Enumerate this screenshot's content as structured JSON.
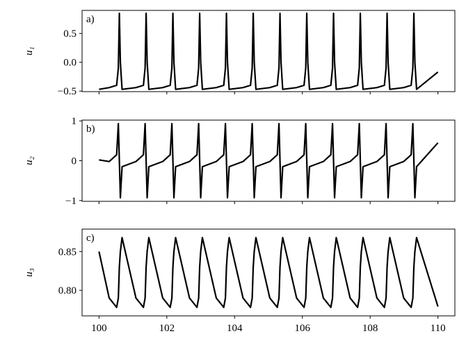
{
  "chart_data": [
    {
      "type": "line",
      "panel_label": "a)",
      "ylabel": "u₁",
      "xlim": [
        99.5,
        110.5
      ],
      "ylim": [
        -0.51,
        0.9
      ],
      "xticks": [
        100,
        102,
        104,
        106,
        108,
        110
      ],
      "xtick_labels": false,
      "yticks": [
        {
          "value": -0.5,
          "label": "−0.5"
        },
        {
          "value": 0,
          "label": "0.0"
        },
        {
          "value": 0.5,
          "label": "0.5"
        }
      ],
      "x": [
        100,
        100.3,
        100.52,
        100.57,
        100.6,
        100.63,
        100.68,
        101.09,
        101.31,
        101.36,
        101.39,
        101.42,
        101.47,
        101.88,
        102.1,
        102.15,
        102.18,
        102.21,
        102.26,
        102.67,
        102.89,
        102.94,
        102.97,
        103,
        103.05,
        103.46,
        103.68,
        103.73,
        103.76,
        103.79,
        103.84,
        104.25,
        104.47,
        104.52,
        104.55,
        104.58,
        104.63,
        105.04,
        105.26,
        105.31,
        105.34,
        105.37,
        105.42,
        105.83,
        106.05,
        106.1,
        106.13,
        106.16,
        106.21,
        106.62,
        106.84,
        106.89,
        106.92,
        106.95,
        107,
        107.41,
        107.63,
        107.68,
        107.71,
        107.74,
        107.79,
        108.2,
        108.42,
        108.47,
        108.5,
        108.53,
        108.58,
        108.99,
        109.21,
        109.26,
        109.29,
        109.32,
        109.37,
        110
      ],
      "series": [
        {
          "color": "#000000",
          "values": [
            -0.47,
            -0.44,
            -0.4,
            -0.1,
            0.85,
            0,
            -0.47,
            -0.44,
            -0.4,
            -0.1,
            0.85,
            0,
            -0.47,
            -0.44,
            -0.4,
            -0.1,
            0.85,
            0,
            -0.47,
            -0.44,
            -0.4,
            -0.1,
            0.85,
            0,
            -0.47,
            -0.44,
            -0.4,
            -0.1,
            0.85,
            0,
            -0.47,
            -0.44,
            -0.4,
            -0.1,
            0.85,
            0,
            -0.47,
            -0.44,
            -0.4,
            -0.1,
            0.85,
            0,
            -0.47,
            -0.44,
            -0.4,
            -0.1,
            0.85,
            0,
            -0.47,
            -0.44,
            -0.4,
            -0.1,
            0.85,
            0,
            -0.47,
            -0.44,
            -0.4,
            -0.1,
            0.85,
            0,
            -0.47,
            -0.44,
            -0.4,
            -0.1,
            0.85,
            0,
            -0.47,
            -0.44,
            -0.4,
            -0.1,
            0.85,
            0,
            -0.47,
            -0.17
          ]
        }
      ]
    },
    {
      "type": "line",
      "panel_label": "b)",
      "ylabel": "u₂",
      "xlim": [
        99.5,
        110.5
      ],
      "ylim": [
        -1.02,
        1.02
      ],
      "xticks": [
        100,
        102,
        104,
        106,
        108,
        110
      ],
      "xtick_labels": false,
      "yticks": [
        {
          "value": -1,
          "label": "−1"
        },
        0,
        1
      ],
      "x": [
        100,
        100.3,
        100.52,
        100.57,
        100.6,
        100.63,
        100.68,
        101.09,
        101.31,
        101.36,
        101.39,
        101.42,
        101.47,
        101.88,
        102.1,
        102.15,
        102.18,
        102.21,
        102.26,
        102.67,
        102.89,
        102.94,
        102.97,
        103,
        103.05,
        103.46,
        103.68,
        103.73,
        103.76,
        103.79,
        103.84,
        104.25,
        104.47,
        104.52,
        104.55,
        104.58,
        104.63,
        105.04,
        105.26,
        105.31,
        105.34,
        105.37,
        105.42,
        105.83,
        106.05,
        106.1,
        106.13,
        106.16,
        106.21,
        106.62,
        106.84,
        106.89,
        106.92,
        106.95,
        107,
        107.41,
        107.63,
        107.68,
        107.71,
        107.74,
        107.79,
        108.2,
        108.42,
        108.47,
        108.5,
        108.53,
        108.58,
        108.99,
        109.21,
        109.26,
        109.29,
        109.32,
        109.37,
        110
      ],
      "series": [
        {
          "color": "#000000",
          "values": [
            0.02,
            -0.02,
            0.15,
            0.93,
            0,
            -0.93,
            -0.15,
            -0.02,
            0.15,
            0.93,
            0,
            -0.93,
            -0.15,
            -0.02,
            0.15,
            0.93,
            0,
            -0.93,
            -0.15,
            -0.02,
            0.15,
            0.93,
            0,
            -0.93,
            -0.15,
            -0.02,
            0.15,
            0.93,
            0,
            -0.93,
            -0.15,
            -0.02,
            0.15,
            0.93,
            0,
            -0.93,
            -0.15,
            -0.02,
            0.15,
            0.93,
            0,
            -0.93,
            -0.15,
            -0.02,
            0.15,
            0.93,
            0,
            -0.93,
            -0.15,
            -0.02,
            0.15,
            0.93,
            0,
            -0.93,
            -0.15,
            -0.02,
            0.15,
            0.93,
            0,
            -0.93,
            -0.15,
            -0.02,
            0.15,
            0.93,
            0,
            -0.93,
            -0.15,
            -0.02,
            0.15,
            0.93,
            0,
            -0.93,
            -0.15,
            0.45
          ]
        }
      ]
    },
    {
      "type": "line",
      "panel_label": "c)",
      "ylabel": "u₃",
      "xlim": [
        99.5,
        110.5
      ],
      "ylim": [
        0.767,
        0.879
      ],
      "xticks": [
        100,
        102,
        104,
        106,
        108,
        110
      ],
      "xtick_labels": true,
      "yticks": [
        {
          "value": 0.8,
          "label": "0.80"
        },
        0.85
      ],
      "x": [
        100,
        100.3,
        100.52,
        100.57,
        100.6,
        100.63,
        100.68,
        101.09,
        101.31,
        101.36,
        101.39,
        101.42,
        101.47,
        101.88,
        102.1,
        102.15,
        102.18,
        102.21,
        102.26,
        102.67,
        102.89,
        102.94,
        102.97,
        103,
        103.05,
        103.46,
        103.68,
        103.73,
        103.76,
        103.79,
        103.84,
        104.25,
        104.47,
        104.52,
        104.55,
        104.58,
        104.63,
        105.04,
        105.26,
        105.31,
        105.34,
        105.37,
        105.42,
        105.83,
        106.05,
        106.1,
        106.13,
        106.16,
        106.21,
        106.62,
        106.84,
        106.89,
        106.92,
        106.95,
        107,
        107.41,
        107.63,
        107.68,
        107.71,
        107.74,
        107.79,
        108.2,
        108.42,
        108.47,
        108.5,
        108.53,
        108.58,
        108.99,
        109.21,
        109.26,
        109.29,
        109.32,
        109.37,
        110
      ],
      "series": [
        {
          "color": "#000000",
          "values": [
            0.85,
            0.79,
            0.778,
            0.79,
            0.83,
            0.85,
            0.868,
            0.79,
            0.778,
            0.79,
            0.83,
            0.85,
            0.868,
            0.79,
            0.778,
            0.79,
            0.83,
            0.85,
            0.868,
            0.79,
            0.778,
            0.79,
            0.83,
            0.85,
            0.868,
            0.79,
            0.778,
            0.79,
            0.83,
            0.85,
            0.868,
            0.79,
            0.778,
            0.79,
            0.83,
            0.85,
            0.868,
            0.79,
            0.778,
            0.79,
            0.83,
            0.85,
            0.868,
            0.79,
            0.778,
            0.79,
            0.83,
            0.85,
            0.868,
            0.79,
            0.778,
            0.79,
            0.83,
            0.85,
            0.868,
            0.79,
            0.778,
            0.79,
            0.83,
            0.85,
            0.868,
            0.79,
            0.778,
            0.79,
            0.83,
            0.85,
            0.868,
            0.79,
            0.778,
            0.79,
            0.83,
            0.85,
            0.868,
            0.779
          ]
        }
      ]
    }
  ]
}
